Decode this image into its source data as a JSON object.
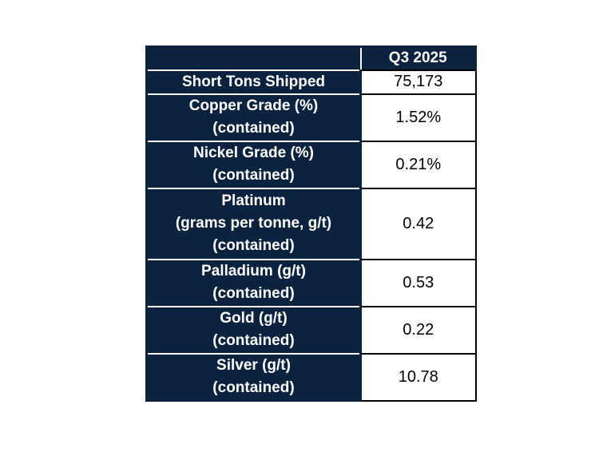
{
  "chart_data": {
    "type": "table",
    "columns": [
      "",
      "Q3 2025"
    ],
    "rows": [
      {
        "label_lines": [
          "Short Tons Shipped"
        ],
        "value": "75,173"
      },
      {
        "label_lines": [
          "Copper Grade (%)",
          "(contained)"
        ],
        "value": "1.52%"
      },
      {
        "label_lines": [
          "Nickel Grade (%)",
          "(contained)"
        ],
        "value": "0.21%"
      },
      {
        "label_lines": [
          "Platinum",
          "(grams per tonne, g/t)",
          "(contained)"
        ],
        "value": "0.42"
      },
      {
        "label_lines": [
          "Palladium (g/t)",
          "(contained)"
        ],
        "value": "0.53"
      },
      {
        "label_lines": [
          "Gold (g/t)",
          "(contained)"
        ],
        "value": "0.22"
      },
      {
        "label_lines": [
          "Silver (g/t)",
          "(contained)"
        ],
        "value": "10.78"
      }
    ],
    "colors": {
      "header_bg": "#0c2340",
      "header_text": "#ffffff",
      "label_bg": "#0c2340",
      "label_text": "#ffffff",
      "value_bg": "#ffffff",
      "value_text": "#000000",
      "separator_white": "#ffffff",
      "separator_black": "#000000"
    },
    "layout": {
      "grid": "on",
      "header_position": "top",
      "label_column_position": "left"
    }
  }
}
